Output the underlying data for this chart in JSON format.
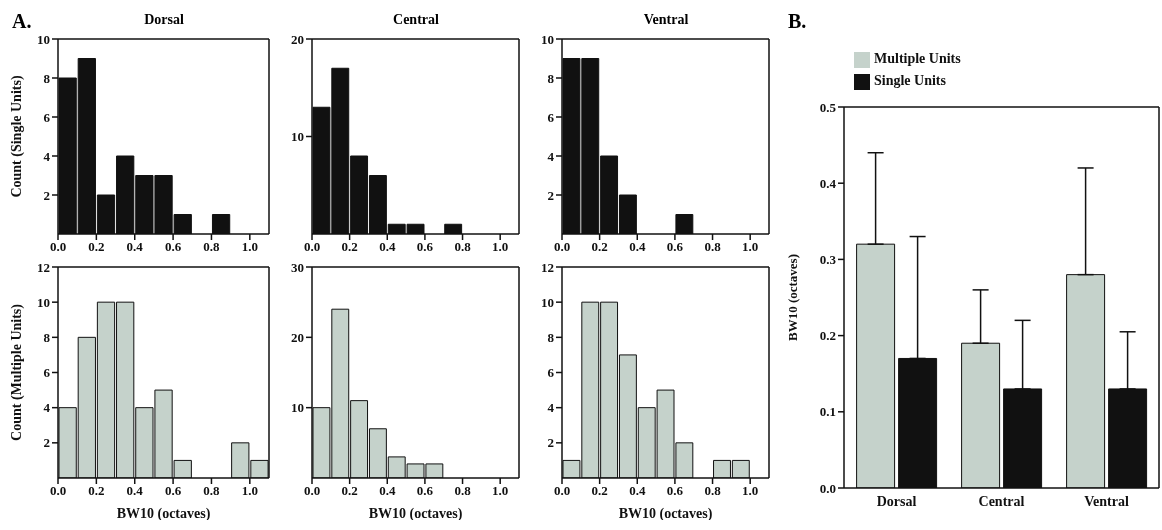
{
  "chart_data": [
    {
      "type": "histogram",
      "title": "Dorsal",
      "ylabel": "Count (Single Units)",
      "annotations": [
        "A."
      ],
      "bins": [
        0,
        0.1,
        0.2,
        0.3,
        0.4,
        0.5,
        0.6,
        0.7,
        0.8,
        0.9,
        1.0,
        1.1
      ],
      "values": [
        8,
        9,
        2,
        4,
        3,
        3,
        1,
        0,
        1,
        0,
        0
      ],
      "color": "#111111",
      "xlim": [
        0,
        1.1
      ],
      "xticks": [
        {
          "value": 0,
          "label": "0.0"
        },
        {
          "value": 0.2,
          "label": "0.2"
        },
        {
          "value": 0.4,
          "label": "0.4"
        },
        {
          "value": 0.6,
          "label": "0.6"
        },
        {
          "value": 0.8,
          "label": "0.8"
        },
        {
          "value": 1,
          "label": "1.0"
        }
      ],
      "ylim": [
        0,
        10
      ],
      "yticks": [
        2,
        4,
        6,
        8,
        10
      ]
    },
    {
      "type": "histogram",
      "title": "Central",
      "bins": [
        0,
        0.1,
        0.2,
        0.3,
        0.4,
        0.5,
        0.6,
        0.7,
        0.8,
        0.9,
        1.0,
        1.1
      ],
      "values": [
        13,
        17,
        8,
        6,
        1,
        1,
        0,
        1,
        0,
        0,
        0
      ],
      "color": "#111111",
      "xlim": [
        0,
        1.1
      ],
      "xticks": [
        {
          "value": 0,
          "label": "0.0"
        },
        {
          "value": 0.2,
          "label": "0.2"
        },
        {
          "value": 0.4,
          "label": "0.4"
        },
        {
          "value": 0.6,
          "label": "0.6"
        },
        {
          "value": 0.8,
          "label": "0.8"
        },
        {
          "value": 1,
          "label": "1.0"
        }
      ],
      "ylim": [
        0,
        20
      ],
      "yticks": [
        10,
        20
      ]
    },
    {
      "type": "histogram",
      "title": "Ventral",
      "bins": [
        0,
        0.1,
        0.2,
        0.3,
        0.4,
        0.5,
        0.6,
        0.7,
        0.8,
        0.9,
        1.0,
        1.1
      ],
      "values": [
        9,
        9,
        4,
        2,
        0,
        0,
        1,
        0,
        0,
        0,
        0
      ],
      "color": "#111111",
      "xlim": [
        0,
        1.1
      ],
      "xticks": [
        {
          "value": 0,
          "label": "0.0"
        },
        {
          "value": 0.2,
          "label": "0.2"
        },
        {
          "value": 0.4,
          "label": "0.4"
        },
        {
          "value": 0.6,
          "label": "0.6"
        },
        {
          "value": 0.8,
          "label": "0.8"
        },
        {
          "value": 1,
          "label": "1.0"
        }
      ],
      "ylim": [
        0,
        10
      ],
      "yticks": [
        2,
        4,
        6,
        8,
        10
      ]
    },
    {
      "type": "histogram",
      "xlabel": "BW10 (octaves)",
      "ylabel": "Count (Multiple Units)",
      "bins": [
        0,
        0.1,
        0.2,
        0.3,
        0.4,
        0.5,
        0.6,
        0.7,
        0.8,
        0.9,
        1.0,
        1.1
      ],
      "values": [
        4,
        8,
        10,
        10,
        4,
        5,
        1,
        0,
        0,
        2,
        1
      ],
      "color": "#c5d2cb",
      "xlim": [
        0,
        1.1
      ],
      "xticks": [
        {
          "value": 0,
          "label": "0.0"
        },
        {
          "value": 0.2,
          "label": "0.2"
        },
        {
          "value": 0.4,
          "label": "0.4"
        },
        {
          "value": 0.6,
          "label": "0.6"
        },
        {
          "value": 0.8,
          "label": "0.8"
        },
        {
          "value": 1,
          "label": "1.0"
        }
      ],
      "ylim": [
        0,
        12
      ],
      "yticks": [
        2,
        4,
        6,
        8,
        10,
        12
      ]
    },
    {
      "type": "histogram",
      "xlabel": "BW10 (octaves)",
      "bins": [
        0,
        0.1,
        0.2,
        0.3,
        0.4,
        0.5,
        0.6,
        0.7,
        0.8,
        0.9,
        1.0,
        1.1
      ],
      "values": [
        10,
        24,
        11,
        7,
        3,
        2,
        2,
        0,
        0,
        0,
        0
      ],
      "color": "#c5d2cb",
      "xlim": [
        0,
        1.1
      ],
      "xticks": [
        {
          "value": 0,
          "label": "0.0"
        },
        {
          "value": 0.2,
          "label": "0.2"
        },
        {
          "value": 0.4,
          "label": "0.4"
        },
        {
          "value": 0.6,
          "label": "0.6"
        },
        {
          "value": 0.8,
          "label": "0.8"
        },
        {
          "value": 1,
          "label": "1.0"
        }
      ],
      "ylim": [
        0,
        30
      ],
      "yticks": [
        10,
        20,
        30
      ]
    },
    {
      "type": "histogram",
      "xlabel": "BW10 (octaves)",
      "bins": [
        0,
        0.1,
        0.2,
        0.3,
        0.4,
        0.5,
        0.6,
        0.7,
        0.8,
        0.9,
        1.0,
        1.1
      ],
      "values": [
        1,
        10,
        10,
        7,
        4,
        5,
        2,
        0,
        1,
        1,
        0
      ],
      "color": "#c5d2cb",
      "xlim": [
        0,
        1.1
      ],
      "xticks": [
        {
          "value": 0,
          "label": "0.0"
        },
        {
          "value": 0.2,
          "label": "0.2"
        },
        {
          "value": 0.4,
          "label": "0.4"
        },
        {
          "value": 0.6,
          "label": "0.6"
        },
        {
          "value": 0.8,
          "label": "0.8"
        },
        {
          "value": 1,
          "label": "1.0"
        }
      ],
      "ylim": [
        0,
        12
      ],
      "yticks": [
        2,
        4,
        6,
        8,
        10,
        12
      ]
    },
    {
      "type": "bar",
      "ylabel": "BW10 (octaves)",
      "annotations": [
        "B."
      ],
      "categories": [
        "Dorsal",
        "Central",
        "Ventral"
      ],
      "legend": "top left",
      "ylim": [
        0,
        0.5
      ],
      "yticks": [
        {
          "value": 0,
          "label": "0.0"
        },
        {
          "value": 0.1,
          "label": "0.1"
        },
        {
          "value": 0.2,
          "label": "0.2"
        },
        {
          "value": 0.3,
          "label": "0.3"
        },
        {
          "value": 0.4,
          "label": "0.4"
        },
        {
          "value": 0.5,
          "label": "0.5"
        }
      ],
      "series": [
        {
          "name": "Multiple Units",
          "color": "#c5d2cb",
          "values": [
            0.32,
            0.19,
            0.28
          ],
          "errors": [
            [
              0.32,
              0.44
            ],
            [
              0.19,
              0.26
            ],
            [
              0.28,
              0.42
            ]
          ]
        },
        {
          "name": "Single Units",
          "color": "#111111",
          "values": [
            0.17,
            0.13,
            0.13
          ],
          "errors": [
            [
              0.17,
              0.33
            ],
            [
              0.13,
              0.22
            ],
            [
              0.13,
              0.205
            ]
          ]
        }
      ]
    }
  ]
}
